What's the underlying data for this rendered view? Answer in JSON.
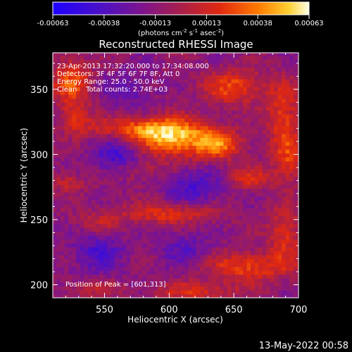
{
  "chart_data": {
    "type": "heatmap",
    "title": "Reconstructed RHESSI Image",
    "xlabel": "Heliocentric X (arcsec)",
    "ylabel": "Heliocentric Y (arcsec)",
    "x_ticks": [
      550,
      600,
      650,
      700
    ],
    "y_ticks": [
      200,
      250,
      300,
      350
    ],
    "xlim": [
      510,
      700
    ],
    "ylim": [
      190,
      378
    ],
    "colorbar": {
      "ticks": [
        "-0.00063",
        "-0.00038",
        "-0.00013",
        "0.00013",
        "0.00038",
        "0.00063"
      ],
      "units_parts": [
        "(photons cm",
        "-2",
        " s",
        "-1",
        " asec",
        "-2",
        ")"
      ],
      "range": [
        -0.00063,
        0.00063
      ]
    },
    "annotations": [
      "23-Apr-2013 17:32:20.000 to 17:34:08.000",
      "Detectors: 3F 4F 5F 6F 7F 8F, Att 0",
      "Energy Range: 25.0 - 50.0 keV",
      "Clean    Total counts: 2.74E+03"
    ],
    "peak_label": "Position of Peak = [601,313]",
    "peak": [
      601,
      313
    ],
    "grid": false,
    "sources": [
      {
        "x": 603,
        "y": 313,
        "amp": 0.00058,
        "sx": 20,
        "sy": 10
      },
      {
        "x": 575,
        "y": 320,
        "amp": 0.00035,
        "sx": 26,
        "sy": 6
      },
      {
        "x": 638,
        "y": 308,
        "amp": 0.00042,
        "sx": 13,
        "sy": 8
      },
      {
        "x": 650,
        "y": 352,
        "amp": 0.00038,
        "sx": 16,
        "sy": 9
      },
      {
        "x": 688,
        "y": 330,
        "amp": 0.00034,
        "sx": 9,
        "sy": 18
      },
      {
        "x": 693,
        "y": 296,
        "amp": 0.0003,
        "sx": 8,
        "sy": 12
      },
      {
        "x": 524,
        "y": 356,
        "amp": 0.00038,
        "sx": 11,
        "sy": 13
      },
      {
        "x": 528,
        "y": 328,
        "amp": 0.00028,
        "sx": 8,
        "sy": 8
      },
      {
        "x": 522,
        "y": 279,
        "amp": 0.00022,
        "sx": 10,
        "sy": 5
      },
      {
        "x": 600,
        "y": 255,
        "amp": 0.00032,
        "sx": 26,
        "sy": 6
      },
      {
        "x": 545,
        "y": 248,
        "amp": 0.0002,
        "sx": 12,
        "sy": 6
      },
      {
        "x": 662,
        "y": 282,
        "amp": 0.00027,
        "sx": 13,
        "sy": 6
      },
      {
        "x": 660,
        "y": 214,
        "amp": 0.00036,
        "sx": 22,
        "sy": 8
      },
      {
        "x": 690,
        "y": 238,
        "amp": 0.0003,
        "sx": 9,
        "sy": 16
      },
      {
        "x": 620,
        "y": 195,
        "amp": 0.00028,
        "sx": 22,
        "sy": 5
      },
      {
        "x": 540,
        "y": 198,
        "amp": 0.0002,
        "sx": 14,
        "sy": 5
      },
      {
        "x": 578,
        "y": 288,
        "amp": 0.00018,
        "sx": 12,
        "sy": 6
      },
      {
        "x": 560,
        "y": 300,
        "amp": -0.0003,
        "sx": 14,
        "sy": 10
      },
      {
        "x": 620,
        "y": 275,
        "amp": -0.00028,
        "sx": 16,
        "sy": 10
      },
      {
        "x": 545,
        "y": 225,
        "amp": -0.00025,
        "sx": 14,
        "sy": 12
      },
      {
        "x": 612,
        "y": 228,
        "amp": -0.0002,
        "sx": 14,
        "sy": 10
      },
      {
        "x": 568,
        "y": 350,
        "amp": -0.00018,
        "sx": 14,
        "sy": 10
      }
    ]
  },
  "timestamp": "13-May-2022 00:58"
}
